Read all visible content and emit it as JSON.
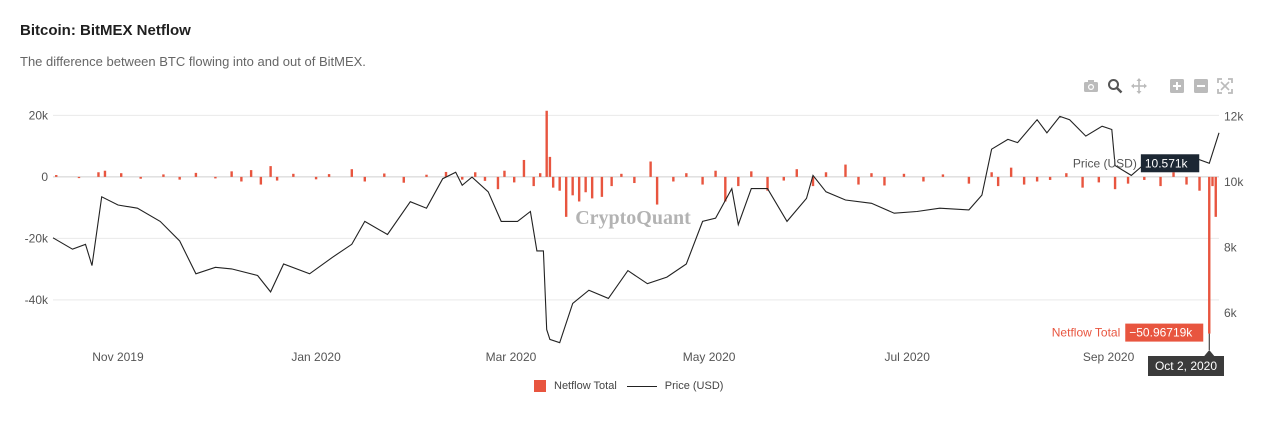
{
  "title": "Bitcoin: BitMEX Netflow",
  "subtitle": "The difference between BTC flowing into and out of BitMEX.",
  "toolbar": {
    "icons": [
      "camera-icon",
      "zoom-icon",
      "pan-icon",
      "zoom-in-icon",
      "zoom-out-icon",
      "autoscale-icon"
    ]
  },
  "watermark": "CryptoQuant",
  "colors": {
    "netflow": "#e8553f",
    "price": "#222222",
    "grid": "#e9e9e9",
    "tooltip_dark": "#1c2733"
  },
  "chart_data": {
    "type": "bar",
    "x_axis": {
      "start": "2019-10-12",
      "end": "2020-10-05",
      "ticks": [
        "Nov 2019",
        "Jan 2020",
        "Mar 2020",
        "May 2020",
        "Jul 2020",
        "Sep 2020"
      ]
    },
    "y_left": {
      "range": [
        -55000,
        25000
      ],
      "ticks": [
        "20k",
        "0",
        "-20k",
        "-40k"
      ]
    },
    "y_right": {
      "range": [
        5000,
        12500
      ],
      "ticks": [
        "12k",
        "10k",
        "8k",
        "6k"
      ]
    },
    "series": [
      {
        "name": "Netflow Total",
        "kind": "bar",
        "values_btc": [
          [
            "2019-10-13",
            600
          ],
          [
            "2019-10-20",
            -400
          ],
          [
            "2019-10-26",
            1500
          ],
          [
            "2019-10-28",
            2000
          ],
          [
            "2019-11-02",
            1200
          ],
          [
            "2019-11-08",
            -600
          ],
          [
            "2019-11-15",
            800
          ],
          [
            "2019-11-20",
            -900
          ],
          [
            "2019-11-25",
            1300
          ],
          [
            "2019-12-01",
            -500
          ],
          [
            "2019-12-06",
            1800
          ],
          [
            "2019-12-09",
            -1500
          ],
          [
            "2019-12-12",
            2200
          ],
          [
            "2019-12-15",
            -2500
          ],
          [
            "2019-12-18",
            3500
          ],
          [
            "2019-12-20",
            -1200
          ],
          [
            "2019-12-25",
            1000
          ],
          [
            "2020-01-01",
            -800
          ],
          [
            "2020-01-05",
            900
          ],
          [
            "2020-01-12",
            2500
          ],
          [
            "2020-01-16",
            -1500
          ],
          [
            "2020-01-22",
            1100
          ],
          [
            "2020-01-28",
            -1900
          ],
          [
            "2020-02-04",
            700
          ],
          [
            "2020-02-10",
            1600
          ],
          [
            "2020-02-15",
            -900
          ],
          [
            "2020-02-19",
            1500
          ],
          [
            "2020-02-22",
            -1300
          ],
          [
            "2020-02-26",
            -4000
          ],
          [
            "2020-02-28",
            2000
          ],
          [
            "2020-03-02",
            -1800
          ],
          [
            "2020-03-05",
            5500
          ],
          [
            "2020-03-08",
            -3000
          ],
          [
            "2020-03-10",
            1200
          ],
          [
            "2020-03-12",
            21500
          ],
          [
            "2020-03-13",
            6500
          ],
          [
            "2020-03-14",
            -3500
          ],
          [
            "2020-03-16",
            -4500
          ],
          [
            "2020-03-18",
            -13000
          ],
          [
            "2020-03-20",
            -6000
          ],
          [
            "2020-03-22",
            -8000
          ],
          [
            "2020-03-24",
            -5000
          ],
          [
            "2020-03-26",
            -7000
          ],
          [
            "2020-03-29",
            -6500
          ],
          [
            "2020-04-01",
            -3000
          ],
          [
            "2020-04-04",
            1000
          ],
          [
            "2020-04-08",
            -2000
          ],
          [
            "2020-04-13",
            5000
          ],
          [
            "2020-04-15",
            -9000
          ],
          [
            "2020-04-20",
            -1500
          ],
          [
            "2020-04-24",
            1200
          ],
          [
            "2020-04-29",
            -2500
          ],
          [
            "2020-05-03",
            2000
          ],
          [
            "2020-05-06",
            -8000
          ],
          [
            "2020-05-10",
            -3000
          ],
          [
            "2020-05-14",
            1800
          ],
          [
            "2020-05-19",
            -4500
          ],
          [
            "2020-05-24",
            -1200
          ],
          [
            "2020-05-28",
            2500
          ],
          [
            "2020-06-02",
            -3000
          ],
          [
            "2020-06-06",
            1500
          ],
          [
            "2020-06-12",
            4000
          ],
          [
            "2020-06-16",
            -2500
          ],
          [
            "2020-06-20",
            1200
          ],
          [
            "2020-06-24",
            -2800
          ],
          [
            "2020-06-30",
            1000
          ],
          [
            "2020-07-06",
            -1500
          ],
          [
            "2020-07-12",
            800
          ],
          [
            "2020-07-20",
            -2200
          ],
          [
            "2020-07-27",
            1500
          ],
          [
            "2020-07-29",
            -3000
          ],
          [
            "2020-08-02",
            3000
          ],
          [
            "2020-08-06",
            -2500
          ],
          [
            "2020-08-10",
            -1500
          ],
          [
            "2020-08-14",
            -1000
          ],
          [
            "2020-08-19",
            1200
          ],
          [
            "2020-08-24",
            -3500
          ],
          [
            "2020-08-29",
            -1800
          ],
          [
            "2020-09-03",
            -4000
          ],
          [
            "2020-09-07",
            -2200
          ],
          [
            "2020-09-12",
            -1000
          ],
          [
            "2020-09-17",
            -3000
          ],
          [
            "2020-09-21",
            1500
          ],
          [
            "2020-09-25",
            -2500
          ],
          [
            "2020-09-29",
            -4500
          ],
          [
            "2020-10-02",
            -50967.19
          ],
          [
            "2020-10-03",
            -3000
          ],
          [
            "2020-10-04",
            -13000
          ]
        ]
      },
      {
        "name": "Price (USD)",
        "kind": "line",
        "values_usd": [
          [
            "2019-10-12",
            8300
          ],
          [
            "2019-10-18",
            7950
          ],
          [
            "2019-10-22",
            8100
          ],
          [
            "2019-10-24",
            7450
          ],
          [
            "2019-10-27",
            9550
          ],
          [
            "2019-11-01",
            9300
          ],
          [
            "2019-11-07",
            9200
          ],
          [
            "2019-11-14",
            8800
          ],
          [
            "2019-11-20",
            8200
          ],
          [
            "2019-11-25",
            7200
          ],
          [
            "2019-12-01",
            7400
          ],
          [
            "2019-12-06",
            7350
          ],
          [
            "2019-12-14",
            7150
          ],
          [
            "2019-12-18",
            6650
          ],
          [
            "2019-12-22",
            7500
          ],
          [
            "2019-12-30",
            7200
          ],
          [
            "2020-01-06",
            7700
          ],
          [
            "2020-01-12",
            8100
          ],
          [
            "2020-01-16",
            8800
          ],
          [
            "2020-01-23",
            8400
          ],
          [
            "2020-01-30",
            9400
          ],
          [
            "2020-02-04",
            9200
          ],
          [
            "2020-02-09",
            10100
          ],
          [
            "2020-02-13",
            10300
          ],
          [
            "2020-02-15",
            9900
          ],
          [
            "2020-02-18",
            10150
          ],
          [
            "2020-02-23",
            9700
          ],
          [
            "2020-02-27",
            8800
          ],
          [
            "2020-03-03",
            8800
          ],
          [
            "2020-03-07",
            9100
          ],
          [
            "2020-03-09",
            7900
          ],
          [
            "2020-03-11",
            7900
          ],
          [
            "2020-03-12",
            5500
          ],
          [
            "2020-03-13",
            5200
          ],
          [
            "2020-03-16",
            5100
          ],
          [
            "2020-03-20",
            6300
          ],
          [
            "2020-03-25",
            6700
          ],
          [
            "2020-03-31",
            6450
          ],
          [
            "2020-04-06",
            7300
          ],
          [
            "2020-04-12",
            6900
          ],
          [
            "2020-04-18",
            7100
          ],
          [
            "2020-04-24",
            7500
          ],
          [
            "2020-04-29",
            8800
          ],
          [
            "2020-05-03",
            8900
          ],
          [
            "2020-05-08",
            9800
          ],
          [
            "2020-05-10",
            8700
          ],
          [
            "2020-05-14",
            9800
          ],
          [
            "2020-05-19",
            9800
          ],
          [
            "2020-05-25",
            8800
          ],
          [
            "2020-05-31",
            9500
          ],
          [
            "2020-06-02",
            10200
          ],
          [
            "2020-06-06",
            9700
          ],
          [
            "2020-06-12",
            9450
          ],
          [
            "2020-06-20",
            9350
          ],
          [
            "2020-06-27",
            9050
          ],
          [
            "2020-07-04",
            9100
          ],
          [
            "2020-07-11",
            9200
          ],
          [
            "2020-07-20",
            9150
          ],
          [
            "2020-07-24",
            9600
          ],
          [
            "2020-07-27",
            11000
          ],
          [
            "2020-08-01",
            11300
          ],
          [
            "2020-08-04",
            11200
          ],
          [
            "2020-08-10",
            11900
          ],
          [
            "2020-08-13",
            11500
          ],
          [
            "2020-08-17",
            12000
          ],
          [
            "2020-08-20",
            11900
          ],
          [
            "2020-08-25",
            11400
          ],
          [
            "2020-08-30",
            11700
          ],
          [
            "2020-09-02",
            11600
          ],
          [
            "2020-09-03",
            10500
          ],
          [
            "2020-09-08",
            10200
          ],
          [
            "2020-09-15",
            10800
          ],
          [
            "2020-09-22",
            10450
          ],
          [
            "2020-09-27",
            10750
          ],
          [
            "2020-10-02",
            10571
          ],
          [
            "2020-10-05",
            11500
          ]
        ]
      }
    ],
    "hover": {
      "date_label": "Oct 2, 2020",
      "netflow_label": "Netflow Total",
      "netflow_value": "−50.96719k",
      "price_label": "Price (USD)",
      "price_value": "10.571k"
    },
    "legend": [
      "Netflow Total",
      "Price (USD)"
    ]
  }
}
